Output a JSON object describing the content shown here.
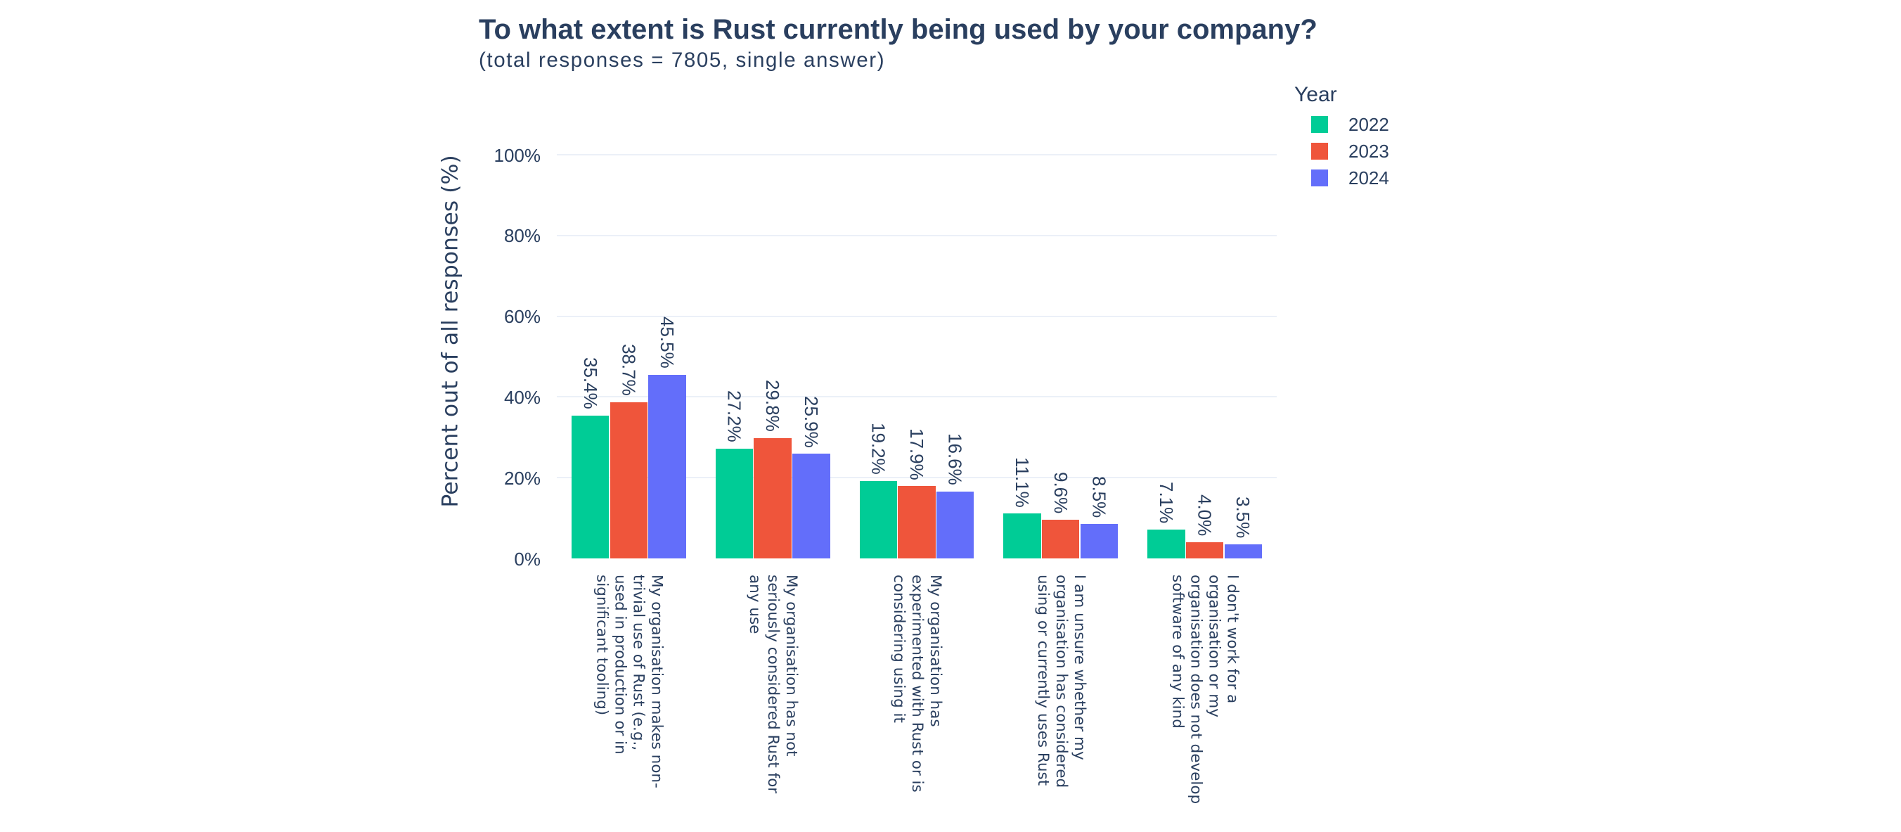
{
  "title": "To what extent is Rust currently being used by your company?",
  "subtitle": "(total responses = 7805, single answer)",
  "legend": {
    "title": "Year",
    "items": [
      {
        "label": "2022",
        "color": "#00CC96"
      },
      {
        "label": "2023",
        "color": "#EF553B"
      },
      {
        "label": "2024",
        "color": "#636EFA"
      }
    ]
  },
  "chart_data": {
    "type": "bar",
    "title": "To what extent is Rust currently being used by your company?",
    "subtitle": "(total responses = 7805, single answer)",
    "categories": [
      "My organisation makes non-\ntrivial use of Rust (e.g.,\nused in production or in\nsignificant tooling)",
      "My organisation has not\nseriously considered Rust for\nany use",
      "My organisation has\nexperimented with Rust or is\nconsidering using it",
      "I am unsure whether my\norganisation has considered\nusing or currently uses Rust",
      "I don't work for a\norganisation or my\norganisation does not develop\nsoftware of any kind"
    ],
    "series": [
      {
        "name": "2022",
        "color": "#00CC96",
        "values": [
          35.4,
          27.2,
          19.2,
          11.1,
          7.1
        ]
      },
      {
        "name": "2023",
        "color": "#EF553B",
        "values": [
          38.7,
          29.8,
          17.9,
          9.6,
          4.0
        ]
      },
      {
        "name": "2024",
        "color": "#636EFA",
        "values": [
          45.5,
          25.9,
          16.6,
          8.5,
          3.5
        ]
      }
    ],
    "xlabel": "",
    "ylabel": "Percent out of all responses (%)",
    "ylim": [
      0,
      100
    ],
    "yticks": [
      0,
      20,
      40,
      60,
      80,
      100
    ],
    "ytick_format": "percent",
    "value_label_format": "one_decimal_percent",
    "legend_title": "Year",
    "legend_position": "right",
    "grid": true
  },
  "colors": {
    "text": "#2a3f5f",
    "grid": "#EBF0F8",
    "background": "#ffffff"
  }
}
